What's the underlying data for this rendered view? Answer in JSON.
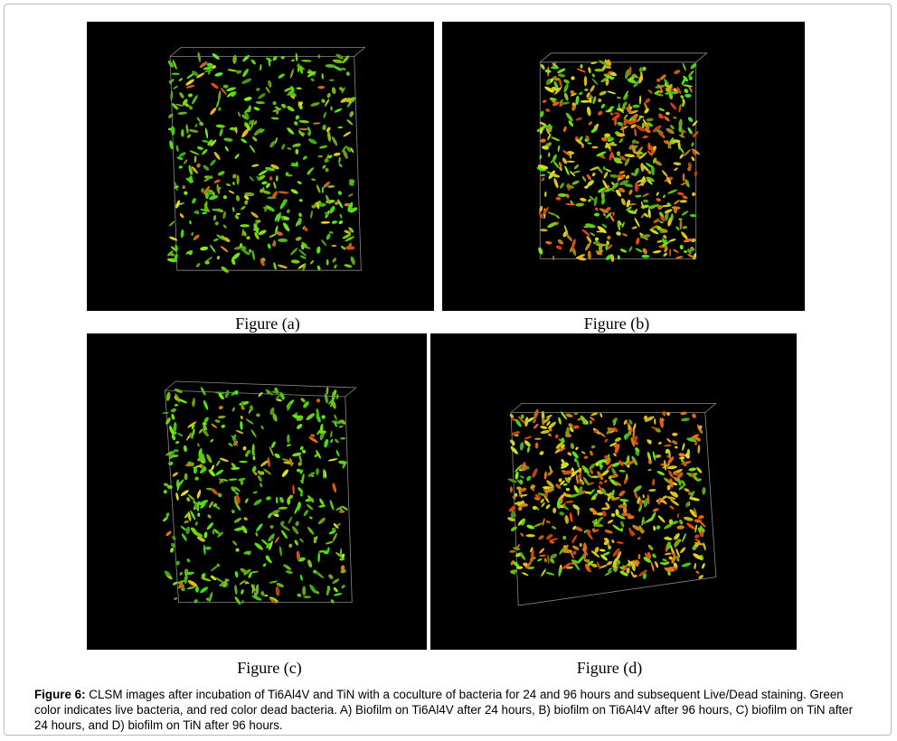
{
  "panels": [
    {
      "label": "Figure (a)"
    },
    {
      "label": "Figure (b)"
    },
    {
      "label": "Figure (c)"
    },
    {
      "label": "Figure (d)"
    }
  ],
  "caption": {
    "label": "Figure 6:",
    "text": "CLSM images after incubation of Ti6Al4V and TiN with a coculture of bacteria for 24 and 96 hours and subsequent Live/Dead staining. Green color indicates live bacteria, and red color dead bacteria. A) Biofilm on Ti6Al4V after 24 hours, B) biofilm on Ti6Al4V after 96 hours, C) biofilm on TiN after 24 hours, and D) biofilm on TiN after 96 hours."
  }
}
